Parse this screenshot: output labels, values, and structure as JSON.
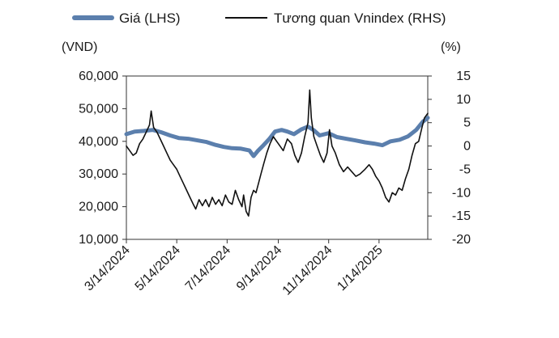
{
  "chart_data": {
    "type": "line",
    "legend": {
      "placement": "top",
      "entries": [
        {
          "label": "Giá (LHS)",
          "color": "#5b7fad"
        },
        {
          "label": "Tương quan Vnindex (RHS)",
          "color": "#111111"
        }
      ]
    },
    "left_axis": {
      "unit": "(VND)",
      "ylim": [
        10000,
        60000
      ],
      "ticks": [
        "60,000",
        "50,000",
        "40,000",
        "30,000",
        "20,000",
        "10,000"
      ],
      "tick_values": [
        60000,
        50000,
        40000,
        30000,
        20000,
        10000
      ]
    },
    "right_axis": {
      "unit": "(%)",
      "ylim": [
        -20,
        15
      ],
      "ticks": [
        "15",
        "10",
        "5",
        "0",
        "-5",
        "-10",
        "-15",
        "-20"
      ],
      "tick_values": [
        15,
        10,
        5,
        0,
        -5,
        -10,
        -15,
        -20
      ]
    },
    "x_axis": {
      "xlim": [
        "2024-03-14",
        "2025-03-14"
      ],
      "ticks": [
        "3/14/2024",
        "5/14/2024",
        "7/14/2024",
        "9/14/2024",
        "11/14/2024",
        "1/14/2025"
      ],
      "tick_dates": [
        "2024-03-14",
        "2024-05-14",
        "2024-07-14",
        "2024-09-14",
        "2024-11-14",
        "2025-01-14"
      ]
    },
    "grid": false,
    "series": [
      {
        "name": "Giá (LHS)",
        "axis": "left",
        "color": "#5b7fad",
        "points": [
          [
            "2024-03-14",
            42200
          ],
          [
            "2024-03-24",
            43000
          ],
          [
            "2024-04-04",
            43200
          ],
          [
            "2024-04-15",
            43500
          ],
          [
            "2024-04-25",
            42800
          ],
          [
            "2024-05-06",
            41800
          ],
          [
            "2024-05-17",
            41000
          ],
          [
            "2024-05-28",
            40800
          ],
          [
            "2024-06-08",
            40300
          ],
          [
            "2024-06-19",
            39800
          ],
          [
            "2024-06-30",
            38900
          ],
          [
            "2024-07-10",
            38300
          ],
          [
            "2024-07-20",
            37900
          ],
          [
            "2024-07-30",
            37800
          ],
          [
            "2024-08-10",
            37200
          ],
          [
            "2024-08-15",
            35500
          ],
          [
            "2024-08-20",
            37000
          ],
          [
            "2024-08-27",
            38800
          ],
          [
            "2024-09-03",
            40700
          ],
          [
            "2024-09-10",
            43000
          ],
          [
            "2024-09-18",
            43500
          ],
          [
            "2024-09-25",
            43000
          ],
          [
            "2024-10-03",
            42200
          ],
          [
            "2024-10-12",
            43700
          ],
          [
            "2024-10-20",
            44500
          ],
          [
            "2024-10-27",
            43400
          ],
          [
            "2024-11-03",
            41800
          ],
          [
            "2024-11-14",
            42500
          ],
          [
            "2024-11-24",
            41300
          ],
          [
            "2024-12-05",
            40800
          ],
          [
            "2024-12-16",
            40300
          ],
          [
            "2024-12-28",
            39700
          ],
          [
            "2025-01-08",
            39300
          ],
          [
            "2025-01-18",
            38800
          ],
          [
            "2025-01-28",
            40000
          ],
          [
            "2025-02-08",
            40500
          ],
          [
            "2025-02-18",
            41500
          ],
          [
            "2025-02-28",
            43500
          ],
          [
            "2025-03-08",
            46000
          ],
          [
            "2025-03-14",
            47200
          ]
        ]
      },
      {
        "name": "Tương quan Vnindex (RHS)",
        "axis": "right",
        "color": "#111111",
        "points": [
          [
            "2024-03-14",
            0.0
          ],
          [
            "2024-03-18",
            -1.0
          ],
          [
            "2024-03-22",
            -2.0
          ],
          [
            "2024-03-26",
            -1.5
          ],
          [
            "2024-03-30",
            0.5
          ],
          [
            "2024-04-03",
            1.5
          ],
          [
            "2024-04-07",
            3.0
          ],
          [
            "2024-04-11",
            4.5
          ],
          [
            "2024-04-13",
            7.5
          ],
          [
            "2024-04-16",
            4.0
          ],
          [
            "2024-04-20",
            3.0
          ],
          [
            "2024-04-24",
            1.5
          ],
          [
            "2024-04-28",
            0.0
          ],
          [
            "2024-05-02",
            -1.5
          ],
          [
            "2024-05-06",
            -3.0
          ],
          [
            "2024-05-10",
            -4.0
          ],
          [
            "2024-05-14",
            -5.0
          ],
          [
            "2024-05-18",
            -6.5
          ],
          [
            "2024-05-22",
            -8.0
          ],
          [
            "2024-05-26",
            -9.5
          ],
          [
            "2024-05-30",
            -11.0
          ],
          [
            "2024-06-03",
            -12.5
          ],
          [
            "2024-06-06",
            -13.5
          ],
          [
            "2024-06-10",
            -11.5
          ],
          [
            "2024-06-14",
            -12.8
          ],
          [
            "2024-06-18",
            -11.5
          ],
          [
            "2024-06-22",
            -13.0
          ],
          [
            "2024-06-26",
            -11.0
          ],
          [
            "2024-06-30",
            -12.5
          ],
          [
            "2024-07-04",
            -11.5
          ],
          [
            "2024-07-08",
            -12.8
          ],
          [
            "2024-07-12",
            -10.5
          ],
          [
            "2024-07-16",
            -12.0
          ],
          [
            "2024-07-20",
            -12.5
          ],
          [
            "2024-07-24",
            -9.5
          ],
          [
            "2024-07-28",
            -11.5
          ],
          [
            "2024-08-01",
            -13.0
          ],
          [
            "2024-08-03",
            -10.5
          ],
          [
            "2024-08-06",
            -14.0
          ],
          [
            "2024-08-09",
            -15.0
          ],
          [
            "2024-08-12",
            -11.0
          ],
          [
            "2024-08-15",
            -9.5
          ],
          [
            "2024-08-18",
            -10.0
          ],
          [
            "2024-08-21",
            -8.0
          ],
          [
            "2024-08-24",
            -6.0
          ],
          [
            "2024-08-27",
            -4.0
          ],
          [
            "2024-08-31",
            -1.5
          ],
          [
            "2024-09-04",
            0.5
          ],
          [
            "2024-09-08",
            2.0
          ],
          [
            "2024-09-12",
            1.0
          ],
          [
            "2024-09-16",
            0.0
          ],
          [
            "2024-09-20",
            -1.0
          ],
          [
            "2024-09-25",
            1.5
          ],
          [
            "2024-09-30",
            0.5
          ],
          [
            "2024-10-04",
            -2.0
          ],
          [
            "2024-10-08",
            -3.5
          ],
          [
            "2024-10-12",
            -1.5
          ],
          [
            "2024-10-16",
            2.0
          ],
          [
            "2024-10-20",
            5.0
          ],
          [
            "2024-10-22",
            12.0
          ],
          [
            "2024-10-24",
            6.0
          ],
          [
            "2024-10-27",
            2.0
          ],
          [
            "2024-10-31",
            0.0
          ],
          [
            "2024-11-04",
            -2.0
          ],
          [
            "2024-11-08",
            -3.5
          ],
          [
            "2024-11-12",
            -1.5
          ],
          [
            "2024-11-15",
            3.5
          ],
          [
            "2024-11-18",
            0.0
          ],
          [
            "2024-11-22",
            -1.5
          ],
          [
            "2024-11-27",
            -4.0
          ],
          [
            "2024-12-02",
            -5.5
          ],
          [
            "2024-12-07",
            -4.5
          ],
          [
            "2024-12-12",
            -5.5
          ],
          [
            "2024-12-17",
            -6.5
          ],
          [
            "2024-12-22",
            -6.0
          ],
          [
            "2024-12-28",
            -5.0
          ],
          [
            "2025-01-02",
            -4.0
          ],
          [
            "2025-01-06",
            -5.0
          ],
          [
            "2025-01-10",
            -6.5
          ],
          [
            "2025-01-14",
            -7.5
          ],
          [
            "2025-01-18",
            -9.0
          ],
          [
            "2025-01-22",
            -11.0
          ],
          [
            "2025-01-26",
            -12.0
          ],
          [
            "2025-01-30",
            -10.0
          ],
          [
            "2025-02-03",
            -10.5
          ],
          [
            "2025-02-07",
            -9.0
          ],
          [
            "2025-02-11",
            -9.5
          ],
          [
            "2025-02-15",
            -7.0
          ],
          [
            "2025-02-19",
            -5.0
          ],
          [
            "2025-02-23",
            -2.0
          ],
          [
            "2025-02-27",
            0.5
          ],
          [
            "2025-03-03",
            1.0
          ],
          [
            "2025-03-07",
            4.0
          ],
          [
            "2025-03-10",
            6.0
          ],
          [
            "2025-03-14",
            7.0
          ]
        ]
      }
    ]
  }
}
